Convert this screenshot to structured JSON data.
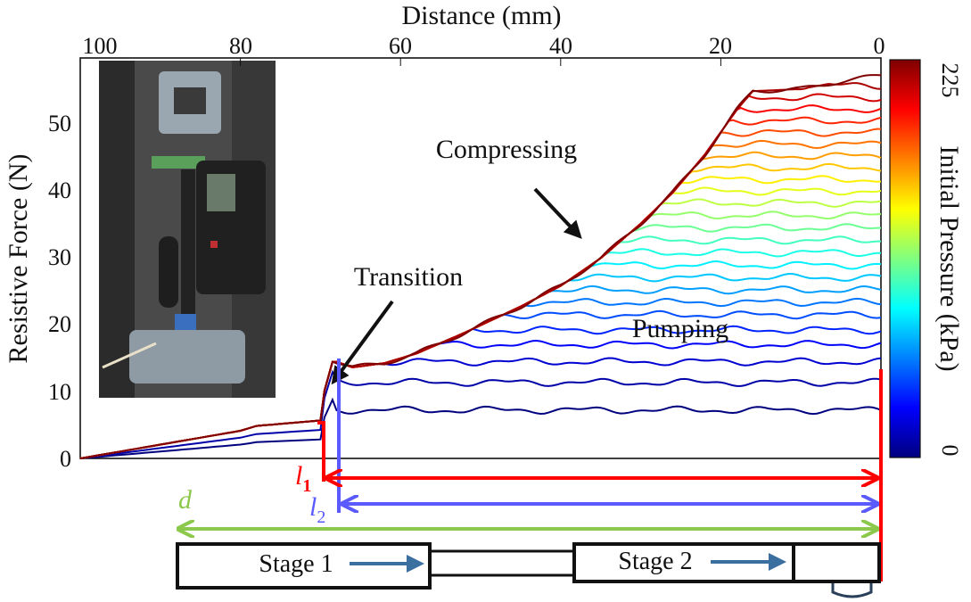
{
  "chart_data": {
    "type": "line",
    "title": "",
    "xlabel": "Distance (mm)",
    "ylabel": "Resistive Force (N)",
    "xlim": [
      100,
      0
    ],
    "ylim": [
      0,
      58
    ],
    "x_ticks": [
      "100",
      "80",
      "60",
      "40",
      "20",
      "0"
    ],
    "y_ticks": [
      "0",
      "10",
      "20",
      "30",
      "40",
      "50"
    ],
    "colorbar": {
      "label": "Initial Pressure (kPa)",
      "min_label": "0",
      "max_label": "225",
      "colormap": "jet"
    },
    "annotations": {
      "compressing": "Compressing",
      "transition": "Transition",
      "pumping": "Pumping"
    },
    "dimensions": {
      "l1": "l",
      "l1_sub": "1",
      "l2": "l",
      "l2_sub": "2",
      "d": "d"
    },
    "stages": {
      "stage1": "Stage 1",
      "stage2": "Stage 2"
    },
    "profile": {
      "stage1_x": [
        100,
        80,
        78,
        70
      ],
      "stage1_y": [
        0,
        4,
        4.7,
        5.5
      ],
      "envelope_x": [
        68,
        66,
        62,
        58,
        52,
        45,
        40,
        35,
        30,
        26,
        22,
        18,
        16,
        10,
        5,
        0
      ],
      "envelope_y": [
        14,
        13.2,
        13.8,
        15.2,
        18.2,
        22,
        25,
        29,
        34,
        38.5,
        44,
        50.5,
        53.2,
        53.5,
        54.6,
        55.5
      ],
      "plateau_levels": [
        7,
        11,
        14,
        16.5,
        18.6,
        20.8,
        22.6,
        24.4,
        26.2,
        28,
        29.8,
        31.6,
        33.4,
        35.2,
        37,
        38.7,
        40.4,
        42.1,
        43.8,
        45.5,
        47.2,
        48.9,
        50.6,
        52.3,
        54,
        55.5
      ]
    },
    "grid": false,
    "legend": "colorbar-right"
  },
  "colors": {
    "l1": "#ff0000",
    "l2": "#5a5aff",
    "d": "#8cc84b",
    "arrow": "#3a6fa0"
  }
}
